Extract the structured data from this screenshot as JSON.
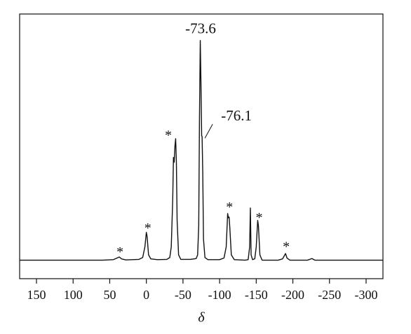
{
  "chart_data": {
    "type": "line",
    "x_label": "δ",
    "xlim": [
      173,
      -323
    ],
    "ylim": [
      0,
      100
    ],
    "xticks": [
      150,
      100,
      50,
      0,
      -50,
      -100,
      -150,
      -200,
      -250,
      -300
    ],
    "color": "#111111",
    "series": [
      {
        "name": null,
        "x": [
          173,
          150,
          100,
          60,
          45,
          40,
          37,
          34,
          28,
          10,
          5,
          2,
          0,
          -1,
          -3,
          -6,
          -15,
          -28,
          -32,
          -34,
          -36,
          -37,
          -38,
          -39,
          -40,
          -41,
          -42,
          -44,
          -47,
          -60,
          -68,
          -70,
          -71.5,
          -72.5,
          -73.6,
          -74.5,
          -75.5,
          -76.1,
          -77,
          -78,
          -80,
          -84,
          -100,
          -106,
          -109,
          -111,
          -112,
          -113,
          -114,
          -116,
          -120,
          -135,
          -139,
          -141,
          -142,
          -143,
          -145,
          -148,
          -150,
          -152,
          -153,
          -155,
          -158,
          -180,
          -186,
          -188,
          -190,
          -192,
          -196,
          -220,
          -226,
          -230,
          -323
        ],
        "values": [
          7,
          7,
          7,
          7,
          7.2,
          7.8,
          8.2,
          7.5,
          7.1,
          7.3,
          8,
          12,
          17.5,
          16,
          9,
          7.5,
          7.2,
          7.3,
          8,
          12,
          30,
          45.8,
          44,
          50,
          52.9,
          44,
          22,
          9,
          7.3,
          7.3,
          7.6,
          9,
          20,
          60,
          90,
          75,
          54,
          53.7,
          40,
          15,
          8,
          7.2,
          7.2,
          7.8,
          12,
          24.6,
          23,
          23.3,
          19,
          9,
          7.2,
          7,
          7.2,
          12,
          26.7,
          9,
          7.2,
          7.5,
          12,
          22,
          20,
          9,
          7,
          7,
          7.5,
          8.5,
          9.5,
          7.8,
          7,
          7,
          7.6,
          7,
          7
        ]
      }
    ],
    "annotations": [
      {
        "text": "-73.6",
        "x": -74,
        "y": 94
      },
      {
        "text": "-76.1",
        "x": -123,
        "y": 61
      },
      {
        "text": "*",
        "x": 36,
        "y": 11
      },
      {
        "text": "*",
        "x": -2,
        "y": 20
      },
      {
        "text": "*",
        "x": -30,
        "y": 55
      },
      {
        "text": "*",
        "x": -113.5,
        "y": 28
      },
      {
        "text": "*",
        "x": -154,
        "y": 24
      },
      {
        "text": "*",
        "x": -191,
        "y": 13
      }
    ]
  }
}
